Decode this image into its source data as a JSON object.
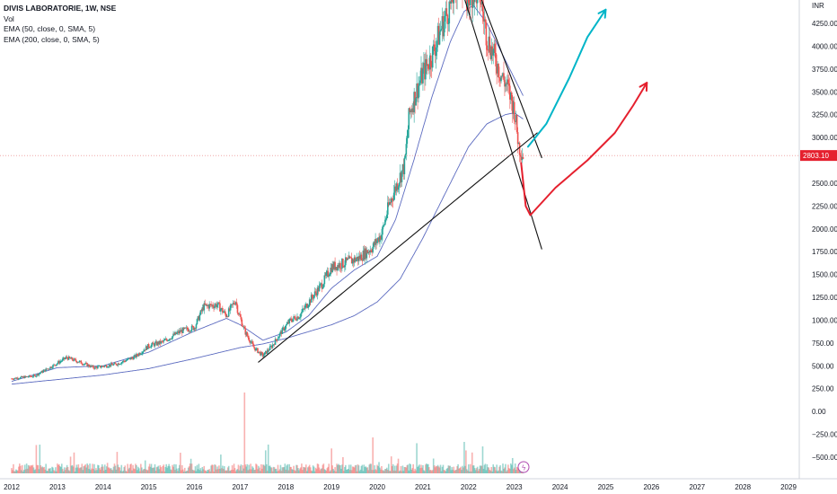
{
  "legend": {
    "title": "DIVIS LABORATORIE, 1W, NSE",
    "vol": "Vol",
    "ema50": "EMA (50, close, 0, SMA, 5)",
    "ema200": "EMA (200, close, 0, SMA, 5)"
  },
  "chart_data": {
    "type": "candlestick",
    "currency_label": "INR",
    "last_price": 2803.1,
    "last_price_label": "2803.10",
    "ylim": [
      -600,
      4560
    ],
    "y_ticks": [
      4250,
      4000,
      3750,
      3500,
      3250,
      3000,
      2500,
      2250,
      2000,
      1750,
      1500,
      1250,
      1000,
      750,
      500,
      250,
      0,
      -250,
      -500
    ],
    "y_tick_labels": [
      "4250.00",
      "4000.00",
      "3750.00",
      "3500.00",
      "3250.00",
      "3000.00",
      "2500.00",
      "2250.00",
      "2000.00",
      "1750.00",
      "1500.00",
      "1250.00",
      "1000.00",
      "750.00",
      "500.00",
      "250.00",
      "0.00",
      "−250.00",
      "−500.00"
    ],
    "x_range": [
      2012.0,
      2029.8
    ],
    "x_ticks": [
      2012,
      2013,
      2014,
      2015,
      2016,
      2017,
      2018,
      2019,
      2020,
      2021,
      2022,
      2023,
      2024,
      2025,
      2026,
      2027,
      2028,
      2029
    ],
    "x_tick_labels": [
      "2012",
      "2013",
      "2014",
      "2015",
      "2016",
      "2017",
      "2018",
      "2019",
      "2020",
      "2021",
      "2022",
      "2023",
      "2024",
      "2025",
      "2026",
      "2027",
      "2028",
      "2029"
    ],
    "price_path": [
      [
        2012.0,
        360
      ],
      [
        2012.5,
        390
      ],
      [
        2012.9,
        500
      ],
      [
        2013.2,
        590
      ],
      [
        2013.5,
        540
      ],
      [
        2013.8,
        480
      ],
      [
        2014.3,
        520
      ],
      [
        2014.7,
        600
      ],
      [
        2015.0,
        720
      ],
      [
        2015.3,
        760
      ],
      [
        2015.7,
        880
      ],
      [
        2016.0,
        920
      ],
      [
        2016.2,
        1150
      ],
      [
        2016.5,
        1170
      ],
      [
        2016.7,
        1050
      ],
      [
        2016.9,
        1220
      ],
      [
        2016.95,
        1100
      ],
      [
        2017.1,
        880
      ],
      [
        2017.3,
        700
      ],
      [
        2017.5,
        610
      ],
      [
        2017.7,
        720
      ],
      [
        2017.9,
        870
      ],
      [
        2018.1,
        1000
      ],
      [
        2018.3,
        1050
      ],
      [
        2018.5,
        1200
      ],
      [
        2018.8,
        1400
      ],
      [
        2019.0,
        1580
      ],
      [
        2019.3,
        1630
      ],
      [
        2019.6,
        1680
      ],
      [
        2019.9,
        1800
      ],
      [
        2020.1,
        1950
      ],
      [
        2020.25,
        2250
      ],
      [
        2020.4,
        2450
      ],
      [
        2020.6,
        2700
      ],
      [
        2020.7,
        3250
      ],
      [
        2020.85,
        3500
      ],
      [
        2021.0,
        3700
      ],
      [
        2021.2,
        3900
      ],
      [
        2021.4,
        4200
      ],
      [
        2021.6,
        4450
      ],
      [
        2021.8,
        4800
      ],
      [
        2021.95,
        4500
      ],
      [
        2022.1,
        4600
      ],
      [
        2022.25,
        4550
      ],
      [
        2022.4,
        4100
      ],
      [
        2022.55,
        3900
      ],
      [
        2022.7,
        3700
      ],
      [
        2022.85,
        3550
      ],
      [
        2023.0,
        3300
      ],
      [
        2023.1,
        2900
      ],
      [
        2023.2,
        2803
      ]
    ],
    "series": [
      {
        "name": "EMA (50, close, 0, SMA, 5)",
        "color": "#3f51b5",
        "points": [
          [
            2012.0,
            330
          ],
          [
            2013.0,
            480
          ],
          [
            2014.0,
            500
          ],
          [
            2015.0,
            650
          ],
          [
            2016.0,
            880
          ],
          [
            2016.7,
            1020
          ],
          [
            2017.0,
            950
          ],
          [
            2017.5,
            780
          ],
          [
            2018.0,
            870
          ],
          [
            2018.5,
            1050
          ],
          [
            2019.0,
            1350
          ],
          [
            2019.5,
            1550
          ],
          [
            2020.0,
            1700
          ],
          [
            2020.4,
            2100
          ],
          [
            2020.8,
            2750
          ],
          [
            2021.2,
            3450
          ],
          [
            2021.6,
            4050
          ],
          [
            2021.9,
            4380
          ],
          [
            2022.1,
            4450
          ],
          [
            2022.4,
            4250
          ],
          [
            2022.7,
            3950
          ],
          [
            2023.0,
            3650
          ],
          [
            2023.2,
            3450
          ]
        ]
      },
      {
        "name": "EMA (200, close, 0, SMA, 5)",
        "color": "#3f51b5",
        "points": [
          [
            2012.0,
            300
          ],
          [
            2013.0,
            350
          ],
          [
            2014.0,
            400
          ],
          [
            2015.0,
            470
          ],
          [
            2016.0,
            580
          ],
          [
            2017.0,
            700
          ],
          [
            2017.5,
            740
          ],
          [
            2018.0,
            800
          ],
          [
            2019.0,
            950
          ],
          [
            2019.5,
            1050
          ],
          [
            2020.0,
            1200
          ],
          [
            2020.5,
            1450
          ],
          [
            2021.0,
            1900
          ],
          [
            2021.5,
            2400
          ],
          [
            2022.0,
            2900
          ],
          [
            2022.4,
            3150
          ],
          [
            2022.8,
            3250
          ],
          [
            2023.0,
            3270
          ],
          [
            2023.2,
            3200
          ]
        ]
      }
    ],
    "volume_spikes": [
      [
        2017.1,
        90
      ],
      [
        2017.55,
        120
      ],
      [
        2019.9,
        40
      ],
      [
        2021.9,
        35
      ],
      [
        2022.3,
        30
      ]
    ],
    "annotations": {
      "trend_up_line": [
        [
          2017.4,
          540
        ],
        [
          2023.5,
          3050
        ]
      ],
      "trend_down_line": [
        [
          2021.8,
          4700
        ],
        [
          2023.6,
          1780
        ]
      ],
      "channel_top_line": [
        [
          2022.1,
          4750
        ],
        [
          2023.6,
          2780
        ]
      ],
      "cyan_arrow_path": [
        [
          2023.3,
          2900
        ],
        [
          2023.7,
          3150
        ],
        [
          2024.2,
          3650
        ],
        [
          2024.6,
          4100
        ],
        [
          2025.0,
          4400
        ]
      ],
      "red_path": [
        [
          2023.15,
          2720
        ],
        [
          2023.25,
          2250
        ],
        [
          2023.35,
          2150
        ],
        [
          2023.9,
          2450
        ],
        [
          2024.6,
          2750
        ],
        [
          2025.2,
          3050
        ],
        [
          2025.6,
          3350
        ],
        [
          2025.9,
          3600
        ]
      ],
      "cyan_color": "#00b5c8",
      "red_color": "#e5202e",
      "trend_color": "#111111"
    },
    "grid": false,
    "legend_position": "top-left"
  }
}
